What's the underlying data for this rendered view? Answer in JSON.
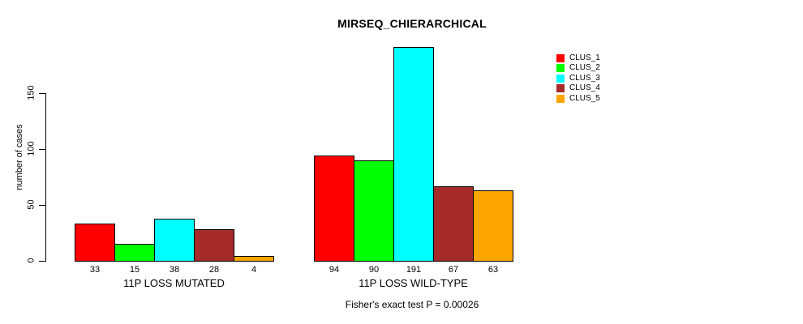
{
  "chart_data": {
    "type": "bar",
    "title": "MIRSEQ_CHIERARCHICAL",
    "ylabel": "number of cases",
    "xlabel": "",
    "ylim": [
      0,
      191
    ],
    "yticks": [
      0,
      50,
      100,
      150
    ],
    "grid": false,
    "legend_position": "right",
    "bar_value_labels_shown": true,
    "categories": [
      "11P LOSS MUTATED",
      "11P LOSS WILD-TYPE"
    ],
    "series": [
      {
        "name": "CLUS_1",
        "color": "#FF0000",
        "values": [
          33,
          94
        ]
      },
      {
        "name": "CLUS_2",
        "color": "#00FF00",
        "values": [
          15,
          90
        ]
      },
      {
        "name": "CLUS_3",
        "color": "#00FFFF",
        "values": [
          38,
          191
        ]
      },
      {
        "name": "CLUS_4",
        "color": "#A52A2A",
        "values": [
          28,
          67
        ]
      },
      {
        "name": "CLUS_5",
        "color": "#FFA500",
        "values": [
          4,
          63
        ]
      }
    ],
    "annotation": "Fisher's exact test P = 0.00026"
  },
  "colors": {
    "background": "#FFFFFF",
    "axis": "#000000",
    "text": "#000000",
    "bar_border": "#000000"
  }
}
